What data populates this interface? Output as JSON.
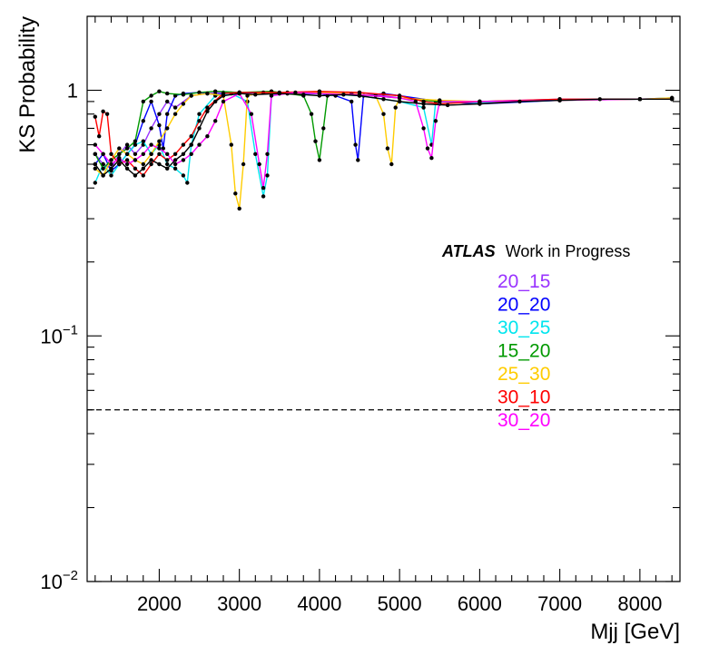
{
  "chart_data": {
    "type": "line",
    "xlabel": "Mjj [GeV]",
    "ylabel": "KS Probability",
    "x_range": [
      1100,
      8500
    ],
    "y_range": [
      0.01,
      2
    ],
    "y_scale": "log",
    "x_ticks": [
      2000,
      3000,
      4000,
      5000,
      6000,
      7000,
      8000
    ],
    "y_ticks": [
      {
        "value": 1,
        "label": "1"
      },
      {
        "value": 0.1,
        "label": "10",
        "sup": "−1"
      },
      {
        "value": 0.01,
        "label": "10",
        "sup": "−2"
      }
    ],
    "reference_line": 0.05,
    "annotation": {
      "bold": "ATLAS",
      "text": "Work in Progress"
    },
    "series": [
      {
        "name": "20_15",
        "color": "#9933ff",
        "points": [
          [
            1200,
            0.55
          ],
          [
            1300,
            0.5
          ],
          [
            1400,
            0.48
          ],
          [
            1500,
            0.55
          ],
          [
            1600,
            0.6
          ],
          [
            1700,
            0.55
          ],
          [
            1800,
            0.6
          ],
          [
            1900,
            0.7
          ],
          [
            2000,
            0.8
          ],
          [
            2100,
            0.9
          ],
          [
            2200,
            0.85
          ],
          [
            2400,
            0.95
          ],
          [
            2600,
            0.97
          ],
          [
            2800,
            0.98
          ],
          [
            3000,
            0.98
          ],
          [
            3500,
            0.97
          ],
          [
            4000,
            0.97
          ],
          [
            4500,
            0.98
          ],
          [
            5000,
            0.93
          ],
          [
            5500,
            0.9
          ],
          [
            6000,
            0.9
          ],
          [
            7000,
            0.92
          ],
          [
            8000,
            0.92
          ],
          [
            8400,
            0.93
          ]
        ]
      },
      {
        "name": "20_20",
        "color": "#0000ff",
        "points": [
          [
            1200,
            0.5
          ],
          [
            1300,
            0.55
          ],
          [
            1400,
            0.47
          ],
          [
            1500,
            0.5
          ],
          [
            1600,
            0.55
          ],
          [
            1700,
            0.6
          ],
          [
            1800,
            0.75
          ],
          [
            1900,
            0.9
          ],
          [
            2000,
            0.72
          ],
          [
            2050,
            0.58
          ],
          [
            2100,
            0.8
          ],
          [
            2200,
            0.95
          ],
          [
            2300,
            0.97
          ],
          [
            2500,
            0.98
          ],
          [
            2700,
            0.96
          ],
          [
            3000,
            0.98
          ],
          [
            3500,
            0.97
          ],
          [
            4000,
            0.97
          ],
          [
            4200,
            0.95
          ],
          [
            4400,
            0.9
          ],
          [
            4450,
            0.6
          ],
          [
            4480,
            0.52
          ],
          [
            4550,
            0.95
          ],
          [
            4800,
            0.97
          ],
          [
            5000,
            0.95
          ],
          [
            5500,
            0.9
          ],
          [
            6000,
            0.88
          ],
          [
            7000,
            0.91
          ],
          [
            8000,
            0.92
          ],
          [
            8400,
            0.92
          ]
        ]
      },
      {
        "name": "30_25",
        "color": "#00e5ee",
        "points": [
          [
            1200,
            0.42
          ],
          [
            1300,
            0.5
          ],
          [
            1400,
            0.45
          ],
          [
            1500,
            0.5
          ],
          [
            1600,
            0.55
          ],
          [
            1700,
            0.6
          ],
          [
            1800,
            0.62
          ],
          [
            1900,
            0.55
          ],
          [
            2000,
            0.6
          ],
          [
            2100,
            0.5
          ],
          [
            2200,
            0.48
          ],
          [
            2300,
            0.45
          ],
          [
            2350,
            0.42
          ],
          [
            2400,
            0.6
          ],
          [
            2500,
            0.8
          ],
          [
            2700,
            0.95
          ],
          [
            2900,
            0.97
          ],
          [
            3100,
            0.9
          ],
          [
            3200,
            0.55
          ],
          [
            3300,
            0.37
          ],
          [
            3350,
            0.45
          ],
          [
            3400,
            0.95
          ],
          [
            3600,
            0.98
          ],
          [
            4000,
            0.97
          ],
          [
            4500,
            0.95
          ],
          [
            5000,
            0.9
          ],
          [
            5300,
            0.85
          ],
          [
            5400,
            0.6
          ],
          [
            5450,
            0.9
          ],
          [
            6000,
            0.89
          ],
          [
            7000,
            0.91
          ],
          [
            8000,
            0.92
          ],
          [
            8400,
            0.93
          ]
        ]
      },
      {
        "name": "15_20",
        "color": "#009900",
        "points": [
          [
            1200,
            0.55
          ],
          [
            1300,
            0.48
          ],
          [
            1400,
            0.52
          ],
          [
            1500,
            0.55
          ],
          [
            1600,
            0.58
          ],
          [
            1700,
            0.62
          ],
          [
            1800,
            0.9
          ],
          [
            1900,
            0.95
          ],
          [
            2000,
            0.99
          ],
          [
            2100,
            0.97
          ],
          [
            2300,
            0.96
          ],
          [
            2500,
            0.98
          ],
          [
            2700,
            0.99
          ],
          [
            3000,
            0.98
          ],
          [
            3400,
            0.99
          ],
          [
            3600,
            0.97
          ],
          [
            3800,
            0.95
          ],
          [
            3900,
            0.8
          ],
          [
            3950,
            0.62
          ],
          [
            4000,
            0.52
          ],
          [
            4050,
            0.7
          ],
          [
            4100,
            0.95
          ],
          [
            4300,
            0.97
          ],
          [
            4500,
            0.96
          ],
          [
            5000,
            0.93
          ],
          [
            5500,
            0.9
          ],
          [
            6000,
            0.9
          ],
          [
            7000,
            0.91
          ],
          [
            8000,
            0.92
          ],
          [
            8400,
            0.92
          ]
        ]
      },
      {
        "name": "25_30",
        "color": "#ffcc00",
        "points": [
          [
            1200,
            0.48
          ],
          [
            1300,
            0.45
          ],
          [
            1400,
            0.52
          ],
          [
            1500,
            0.58
          ],
          [
            1600,
            0.55
          ],
          [
            1700,
            0.52
          ],
          [
            1800,
            0.5
          ],
          [
            1900,
            0.55
          ],
          [
            2000,
            0.62
          ],
          [
            2100,
            0.7
          ],
          [
            2200,
            0.8
          ],
          [
            2300,
            0.88
          ],
          [
            2400,
            0.95
          ],
          [
            2600,
            0.97
          ],
          [
            2800,
            0.95
          ],
          [
            2900,
            0.6
          ],
          [
            2950,
            0.38
          ],
          [
            3000,
            0.33
          ],
          [
            3050,
            0.5
          ],
          [
            3100,
            0.95
          ],
          [
            3300,
            0.98
          ],
          [
            3600,
            0.97
          ],
          [
            4000,
            0.98
          ],
          [
            4400,
            0.97
          ],
          [
            4700,
            0.95
          ],
          [
            4800,
            0.8
          ],
          [
            4850,
            0.58
          ],
          [
            4900,
            0.5
          ],
          [
            4950,
            0.85
          ],
          [
            5000,
            0.93
          ],
          [
            5500,
            0.91
          ],
          [
            6000,
            0.9
          ],
          [
            7000,
            0.91
          ],
          [
            8000,
            0.92
          ],
          [
            8400,
            0.93
          ]
        ]
      },
      {
        "name": "30_10",
        "color": "#ff0000",
        "points": [
          [
            1200,
            0.78
          ],
          [
            1250,
            0.65
          ],
          [
            1300,
            0.82
          ],
          [
            1350,
            0.8
          ],
          [
            1400,
            0.55
          ],
          [
            1500,
            0.5
          ],
          [
            1600,
            0.52
          ],
          [
            1700,
            0.48
          ],
          [
            1800,
            0.45
          ],
          [
            1900,
            0.5
          ],
          [
            2000,
            0.55
          ],
          [
            2100,
            0.52
          ],
          [
            2200,
            0.55
          ],
          [
            2300,
            0.6
          ],
          [
            2400,
            0.65
          ],
          [
            2500,
            0.75
          ],
          [
            2600,
            0.85
          ],
          [
            2800,
            0.97
          ],
          [
            3000,
            0.98
          ],
          [
            3500,
            0.98
          ],
          [
            4000,
            0.99
          ],
          [
            4500,
            0.98
          ],
          [
            5000,
            0.95
          ],
          [
            5300,
            0.9
          ],
          [
            5500,
            0.88
          ],
          [
            6000,
            0.9
          ],
          [
            7000,
            0.92
          ],
          [
            8000,
            0.92
          ],
          [
            8400,
            0.92
          ]
        ]
      },
      {
        "name": "30_20",
        "color": "#ff00ff",
        "points": [
          [
            1200,
            0.6
          ],
          [
            1300,
            0.55
          ],
          [
            1400,
            0.5
          ],
          [
            1500,
            0.53
          ],
          [
            1600,
            0.5
          ],
          [
            1700,
            0.52
          ],
          [
            1800,
            0.55
          ],
          [
            1900,
            0.6
          ],
          [
            2000,
            0.58
          ],
          [
            2100,
            0.55
          ],
          [
            2200,
            0.5
          ],
          [
            2300,
            0.52
          ],
          [
            2400,
            0.55
          ],
          [
            2500,
            0.6
          ],
          [
            2600,
            0.65
          ],
          [
            2700,
            0.75
          ],
          [
            2800,
            0.9
          ],
          [
            3000,
            0.97
          ],
          [
            3150,
            0.8
          ],
          [
            3250,
            0.5
          ],
          [
            3300,
            0.4
          ],
          [
            3350,
            0.55
          ],
          [
            3400,
            0.95
          ],
          [
            3700,
            0.98
          ],
          [
            4000,
            0.97
          ],
          [
            4500,
            0.96
          ],
          [
            5000,
            0.93
          ],
          [
            5200,
            0.9
          ],
          [
            5300,
            0.7
          ],
          [
            5350,
            0.58
          ],
          [
            5400,
            0.53
          ],
          [
            5450,
            0.75
          ],
          [
            5500,
            0.9
          ],
          [
            6000,
            0.9
          ],
          [
            7000,
            0.91
          ],
          [
            8000,
            0.92
          ],
          [
            8400,
            0.92
          ]
        ]
      },
      {
        "name": "",
        "color": "#000000",
        "points": [
          [
            1200,
            0.5
          ],
          [
            1300,
            0.45
          ],
          [
            1400,
            0.48
          ],
          [
            1500,
            0.52
          ],
          [
            1600,
            0.48
          ],
          [
            1700,
            0.45
          ],
          [
            1800,
            0.48
          ],
          [
            1900,
            0.52
          ],
          [
            2000,
            0.5
          ],
          [
            2100,
            0.48
          ],
          [
            2200,
            0.52
          ],
          [
            2300,
            0.55
          ],
          [
            2400,
            0.6
          ],
          [
            2500,
            0.7
          ],
          [
            2600,
            0.82
          ],
          [
            2700,
            0.9
          ],
          [
            2800,
            0.95
          ],
          [
            3000,
            0.97
          ],
          [
            3200,
            0.96
          ],
          [
            3500,
            0.97
          ],
          [
            3800,
            0.96
          ],
          [
            4000,
            0.95
          ],
          [
            4300,
            0.96
          ],
          [
            4500,
            0.95
          ],
          [
            4800,
            0.92
          ],
          [
            5000,
            0.9
          ],
          [
            5300,
            0.88
          ],
          [
            5600,
            0.87
          ],
          [
            6000,
            0.88
          ],
          [
            6500,
            0.9
          ],
          [
            7000,
            0.91
          ],
          [
            7500,
            0.92
          ],
          [
            8000,
            0.92
          ],
          [
            8400,
            0.92
          ]
        ]
      }
    ],
    "legend_placement": "right"
  }
}
